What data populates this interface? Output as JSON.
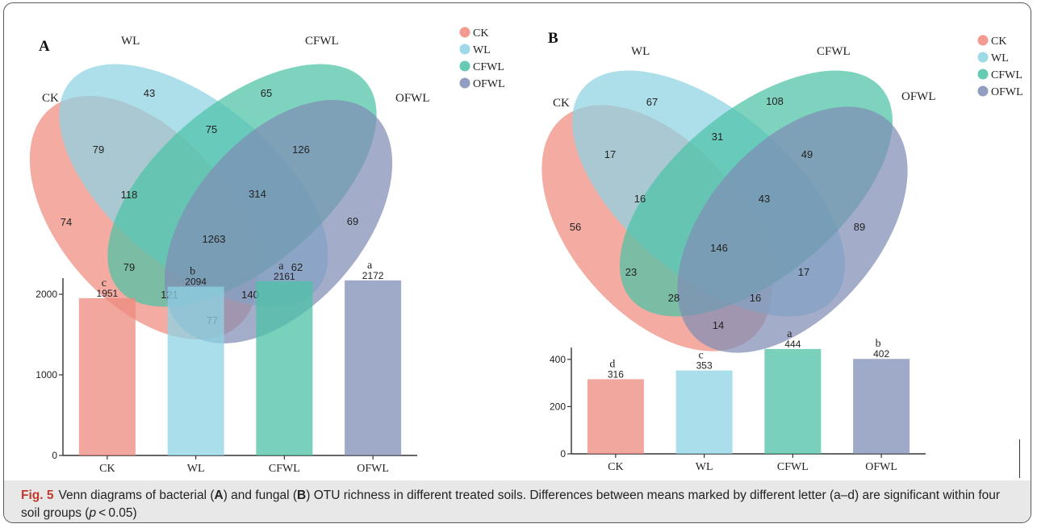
{
  "colors": {
    "CK": "#ee8a7e",
    "WL": "#8dd3e3",
    "CFWL": "#4cc2a6",
    "OFWL": "#7f8db5",
    "axis": "#333333",
    "caption_bg": "#e8e8e8",
    "fig_label": "#c0392b"
  },
  "caption": {
    "fig": "Fig. 5",
    "t1": "Venn diagrams of bacterial (",
    "a": "A",
    "t2": ") and fungal (",
    "b": "B",
    "t3": ") OTU richness in different treated soils. Differences between means marked by different letter (a–d) are significant within four soil groups (",
    "p": "p",
    "t4": " < 0.05)"
  },
  "chart_data": [
    {
      "type": "venn",
      "panel": "A",
      "sets": [
        "CK",
        "WL",
        "CFWL",
        "OFWL"
      ],
      "legend": [
        "CK",
        "WL",
        "CFWL",
        "OFWL"
      ],
      "legend_position": "top-right",
      "regions": {
        "CK": 74,
        "WL": 43,
        "CFWL": 65,
        "OFWL": 69,
        "CK&WL": 79,
        "WL&CFWL": 75,
        "CFWL&OFWL": 126,
        "CK&WL&CFWL": 118,
        "WL&CFWL&OFWL": 314,
        "CK&WL&CFWL&OFWL": 1263,
        "CK&CFWL": 79,
        "WL&OFWL": 62,
        "CK&CFWL&OFWL": 121,
        "CK&WL&OFWL": 140,
        "CK&OFWL": 77
      }
    },
    {
      "type": "bar",
      "panel": "A",
      "categories": [
        "CK",
        "WL",
        "CFWL",
        "OFWL"
      ],
      "values": [
        1951,
        2094,
        2161,
        2172
      ],
      "letters": [
        "c",
        "b",
        "a",
        "a"
      ],
      "yticks": [
        0,
        1000,
        2000
      ],
      "ylim": [
        0,
        2200
      ]
    },
    {
      "type": "venn",
      "panel": "B",
      "sets": [
        "CK",
        "WL",
        "CFWL",
        "OFWL"
      ],
      "legend": [
        "CK",
        "WL",
        "CFWL",
        "OFWL"
      ],
      "legend_position": "top-right",
      "regions": {
        "CK": 56,
        "WL": 67,
        "CFWL": 108,
        "OFWL": 89,
        "CK&WL": 17,
        "WL&CFWL": 31,
        "CFWL&OFWL": 49,
        "CK&WL&CFWL": 16,
        "WL&CFWL&OFWL": 43,
        "CK&WL&CFWL&OFWL": 146,
        "CK&CFWL": 23,
        "WL&OFWL": 17,
        "CK&CFWL&OFWL": 28,
        "CK&WL&OFWL": 16,
        "CK&OFWL": 14
      }
    },
    {
      "type": "bar",
      "panel": "B",
      "categories": [
        "CK",
        "WL",
        "CFWL",
        "OFWL"
      ],
      "values": [
        316,
        353,
        444,
        402
      ],
      "letters": [
        "d",
        "c",
        "a",
        "b"
      ],
      "yticks": [
        0,
        200,
        400
      ],
      "ylim": [
        0,
        450
      ]
    }
  ]
}
